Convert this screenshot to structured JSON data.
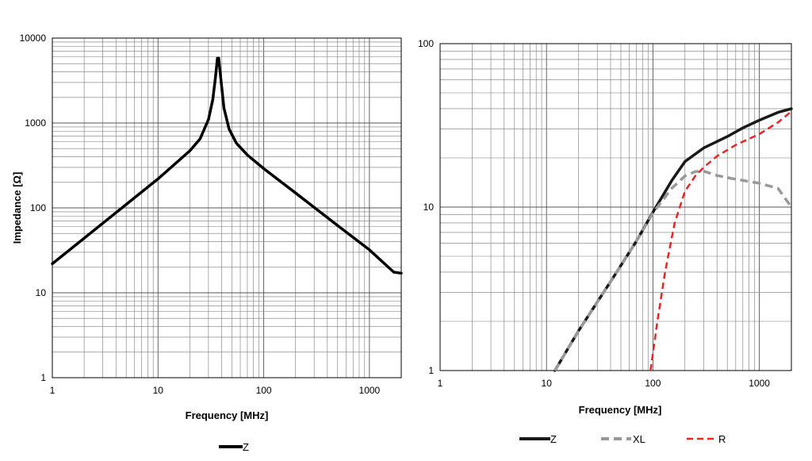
{
  "chart_data": [
    {
      "type": "line",
      "title": "",
      "xlabel": "Frequency [MHz]",
      "ylabel": "Impedance [Ω]",
      "xscale": "log",
      "yscale": "log",
      "xlim": [
        1,
        2000
      ],
      "ylim": [
        1,
        10000
      ],
      "grid": true,
      "legend_position": "bottom-center",
      "xticks": [
        "1",
        "10",
        "100",
        "1000"
      ],
      "yticks": [
        "1",
        "10",
        "100",
        "1000",
        "10000"
      ],
      "series": [
        {
          "name": "Z",
          "color": "#000000",
          "style": "solid",
          "points": [
            [
              1,
              22
            ],
            [
              2,
              44
            ],
            [
              5,
              110
            ],
            [
              10,
              220
            ],
            [
              20,
              470
            ],
            [
              25,
              650
            ],
            [
              30,
              1100
            ],
            [
              33,
              1900
            ],
            [
              35,
              3500
            ],
            [
              36.5,
              5800
            ],
            [
              37.5,
              5800
            ],
            [
              39,
              3600
            ],
            [
              42,
              1500
            ],
            [
              47,
              850
            ],
            [
              55,
              580
            ],
            [
              70,
              420
            ],
            [
              100,
              290
            ],
            [
              200,
              150
            ],
            [
              500,
              62
            ],
            [
              1000,
              32
            ],
            [
              1700,
              17.5
            ],
            [
              2000,
              17
            ]
          ]
        }
      ]
    },
    {
      "type": "line",
      "title": "",
      "xlabel": "Frequency [MHz]",
      "ylabel": "",
      "xscale": "log",
      "yscale": "log",
      "xlim": [
        1,
        2000
      ],
      "ylim": [
        1,
        100
      ],
      "grid": true,
      "legend_position": "bottom-center",
      "xticks": [
        "1",
        "10",
        "100",
        "1000"
      ],
      "yticks": [
        "1",
        "10",
        "100"
      ],
      "series": [
        {
          "name": "Z",
          "color": "#1a1a1a",
          "style": "solid",
          "points": [
            [
              12,
              1
            ],
            [
              20,
              1.75
            ],
            [
              40,
              3.5
            ],
            [
              70,
              6.2
            ],
            [
              100,
              9.3
            ],
            [
              150,
              14.5
            ],
            [
              200,
              19
            ],
            [
              300,
              23
            ],
            [
              500,
              27
            ],
            [
              700,
              30.5
            ],
            [
              1000,
              34
            ],
            [
              1500,
              38
            ],
            [
              2000,
              40
            ]
          ]
        },
        {
          "name": "XL",
          "color": "#999999",
          "style": "dashed",
          "points": [
            [
              12,
              1
            ],
            [
              20,
              1.75
            ],
            [
              40,
              3.5
            ],
            [
              70,
              6.2
            ],
            [
              100,
              9.2
            ],
            [
              150,
              13
            ],
            [
              200,
              15.5
            ],
            [
              250,
              16.5
            ],
            [
              300,
              16.6
            ],
            [
              400,
              15.6
            ],
            [
              600,
              14.8
            ],
            [
              1000,
              14
            ],
            [
              1500,
              13
            ],
            [
              2000,
              10
            ]
          ]
        },
        {
          "name": "R",
          "color": "#ee2222",
          "style": "dashed",
          "points": [
            [
              95,
              1
            ],
            [
              110,
              2
            ],
            [
              130,
              4
            ],
            [
              160,
              8
            ],
            [
              200,
              12.5
            ],
            [
              250,
              15.5
            ],
            [
              300,
              17.5
            ],
            [
              400,
              20.5
            ],
            [
              600,
              24
            ],
            [
              1000,
              28
            ],
            [
              1500,
              33
            ],
            [
              2000,
              38.5
            ]
          ]
        }
      ]
    }
  ],
  "legend_left": [
    {
      "name": "Z"
    }
  ],
  "legend_right": [
    {
      "name": "Z"
    },
    {
      "name": "XL"
    },
    {
      "name": "R"
    }
  ]
}
